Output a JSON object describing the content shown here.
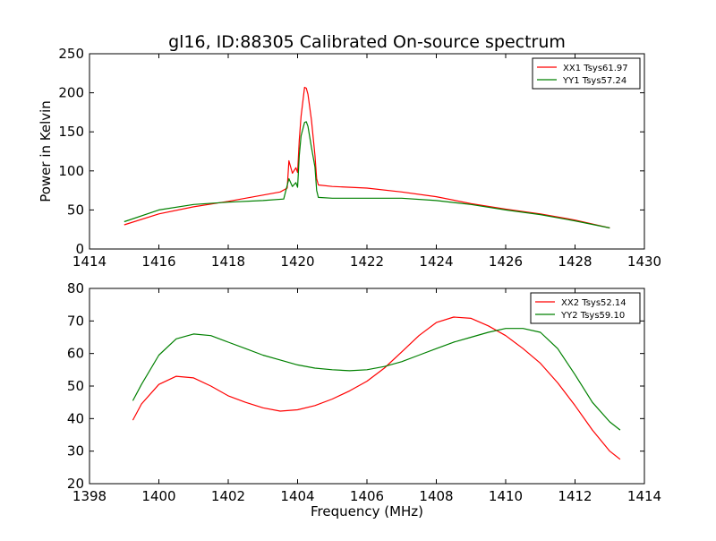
{
  "figure_title": "gl16, ID:88305 Calibrated On-source spectrum",
  "chart_data": [
    {
      "type": "line",
      "title": "gl16, ID:88305 Calibrated On-source spectrum",
      "xlabel": "",
      "ylabel": "Power in Kelvin",
      "xlim": [
        1414,
        1430
      ],
      "ylim": [
        0,
        250
      ],
      "xticks": [
        "1414",
        "1416",
        "1418",
        "1420",
        "1422",
        "1424",
        "1426",
        "1428",
        "1430"
      ],
      "yticks": [
        "0",
        "50",
        "100",
        "150",
        "200",
        "250"
      ],
      "grid": false,
      "legend_position": "top-right",
      "series": [
        {
          "name": "XX1 Tsys61.97",
          "color": "#ff0000",
          "x": [
            1415.0,
            1416.0,
            1417.0,
            1418.0,
            1419.0,
            1419.5,
            1419.7,
            1419.75,
            1419.85,
            1419.95,
            1420.0,
            1420.05,
            1420.1,
            1420.2,
            1420.25,
            1420.3,
            1420.4,
            1420.5,
            1420.55,
            1420.6,
            1421.0,
            1422.0,
            1423.0,
            1424.0,
            1425.0,
            1426.0,
            1427.0,
            1428.0,
            1429.0
          ],
          "y": [
            31,
            45,
            54,
            61,
            69,
            73,
            78,
            113,
            97,
            104,
            98,
            140,
            170,
            207,
            206,
            198,
            165,
            120,
            90,
            82,
            80,
            78,
            73,
            67,
            58,
            51,
            45,
            37,
            27
          ]
        },
        {
          "name": "YY1 Tsys57.24",
          "color": "#008000",
          "x": [
            1415.0,
            1416.0,
            1417.0,
            1418.0,
            1419.0,
            1419.6,
            1419.75,
            1419.85,
            1419.95,
            1420.0,
            1420.05,
            1420.1,
            1420.2,
            1420.25,
            1420.3,
            1420.4,
            1420.5,
            1420.55,
            1420.6,
            1421.0,
            1422.0,
            1423.0,
            1424.0,
            1425.0,
            1426.0,
            1427.0,
            1428.0,
            1429.0
          ],
          "y": [
            35,
            50,
            57,
            60,
            62,
            64,
            90,
            80,
            85,
            79,
            120,
            145,
            162,
            163,
            157,
            130,
            105,
            75,
            66,
            65,
            65,
            65,
            62,
            57,
            50,
            44,
            36,
            27
          ]
        }
      ]
    },
    {
      "type": "line",
      "title": "",
      "xlabel": "Frequency (MHz)",
      "ylabel": "",
      "xlim": [
        1398,
        1414
      ],
      "ylim": [
        20,
        80
      ],
      "xticks": [
        "1398",
        "1400",
        "1402",
        "1404",
        "1406",
        "1408",
        "1410",
        "1412",
        "1414"
      ],
      "yticks": [
        "20",
        "30",
        "40",
        "50",
        "60",
        "70",
        "80"
      ],
      "grid": false,
      "legend_position": "top-right",
      "series": [
        {
          "name": "XX2 Tsys52.14",
          "color": "#ff0000",
          "x": [
            1399.25,
            1399.5,
            1400.0,
            1400.5,
            1401.0,
            1401.5,
            1402.0,
            1402.5,
            1403.0,
            1403.5,
            1404.0,
            1404.5,
            1405.0,
            1405.5,
            1406.0,
            1406.5,
            1407.0,
            1407.5,
            1408.0,
            1408.5,
            1409.0,
            1409.5,
            1410.0,
            1410.5,
            1411.0,
            1411.5,
            1412.0,
            1412.5,
            1413.0,
            1413.3
          ],
          "y": [
            39.5,
            44.5,
            50.5,
            53.0,
            52.5,
            50.0,
            47.0,
            45.0,
            43.3,
            42.3,
            42.7,
            44.0,
            46.0,
            48.5,
            51.5,
            55.5,
            60.5,
            65.5,
            69.5,
            71.2,
            70.8,
            68.5,
            65.5,
            61.5,
            57.0,
            51.0,
            44.0,
            36.5,
            30.0,
            27.5
          ]
        },
        {
          "name": "YY2 Tsys59.10",
          "color": "#008000",
          "x": [
            1399.25,
            1399.5,
            1400.0,
            1400.5,
            1401.0,
            1401.5,
            1402.0,
            1402.5,
            1403.0,
            1403.5,
            1404.0,
            1404.5,
            1405.0,
            1405.5,
            1406.0,
            1406.5,
            1407.0,
            1407.5,
            1408.0,
            1408.5,
            1409.0,
            1409.5,
            1410.0,
            1410.5,
            1411.0,
            1411.5,
            1412.0,
            1412.5,
            1413.0,
            1413.3
          ],
          "y": [
            45.5,
            50.5,
            59.5,
            64.5,
            66.0,
            65.5,
            63.5,
            61.5,
            59.5,
            58.0,
            56.5,
            55.5,
            55.0,
            54.7,
            55.0,
            56.0,
            57.5,
            59.5,
            61.5,
            63.5,
            65.0,
            66.5,
            67.7,
            67.7,
            66.5,
            61.5,
            53.5,
            45.0,
            39.0,
            36.5
          ]
        }
      ]
    }
  ]
}
